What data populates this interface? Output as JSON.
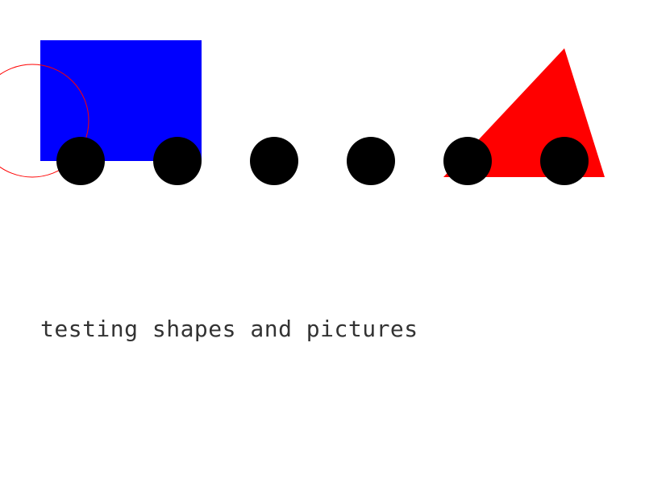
{
  "caption": "testing shapes and pictures",
  "colors": {
    "background": "#ffffff",
    "rectangle": "#0000ff",
    "triangle": "#ff0000",
    "circle_outline": "#ff0000",
    "dots": "#000000",
    "text": "#333333"
  },
  "shapes": {
    "rectangle": "blue-rectangle",
    "triangle": "red-triangle",
    "outline_circle": "red-outline-circle",
    "dot_count": 6
  }
}
